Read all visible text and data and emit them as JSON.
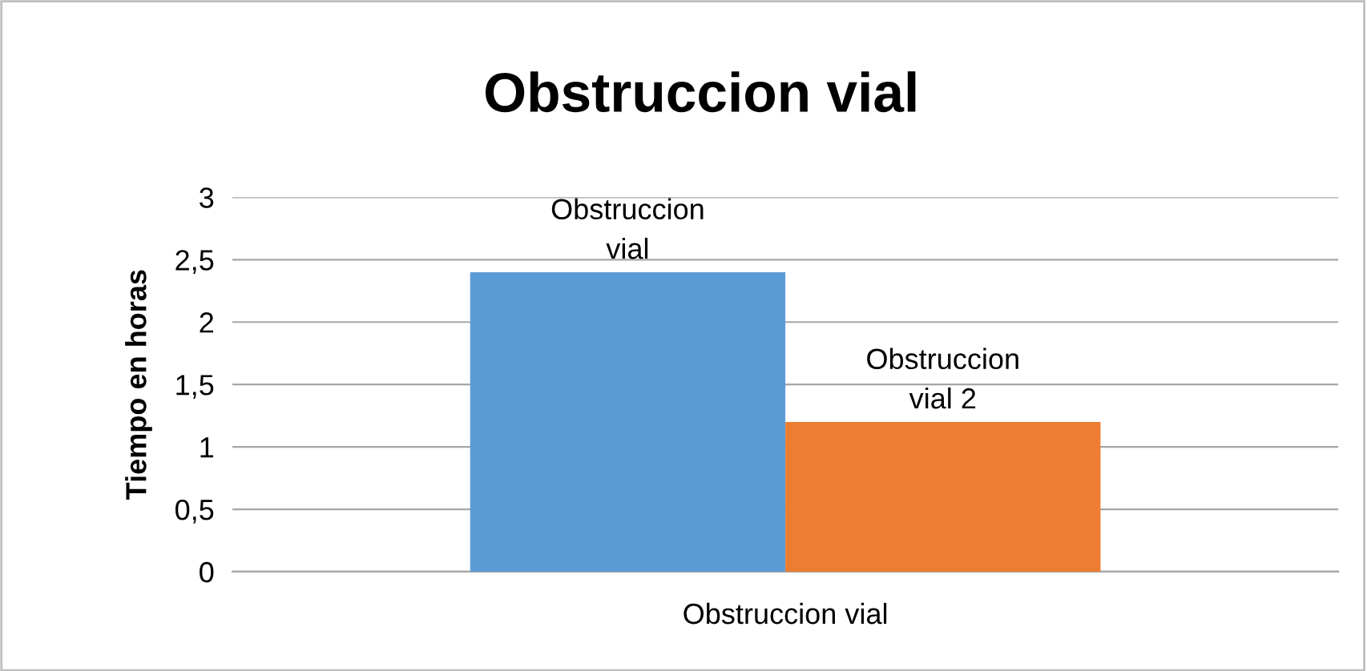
{
  "chart_data": {
    "type": "bar",
    "title": "Obstruccion vial",
    "ylabel": "Tiempo en horas",
    "categories": [
      "Obstruccion vial"
    ],
    "series": [
      {
        "name": "Obstruccion vial",
        "color": "#5b9bd5",
        "values": [
          2.4
        ]
      },
      {
        "name": "Obstruccion vial 2",
        "color": "#ed7d31",
        "values": [
          1.2
        ]
      }
    ],
    "ylim": [
      0,
      3
    ],
    "yticks": [
      0,
      {
        "value": 0.5,
        "label": "0,5"
      },
      1,
      {
        "value": 1.5,
        "label": "1,5"
      },
      2,
      {
        "value": 2.5,
        "label": "2,5"
      },
      3
    ],
    "grid": "y",
    "legend": false
  }
}
